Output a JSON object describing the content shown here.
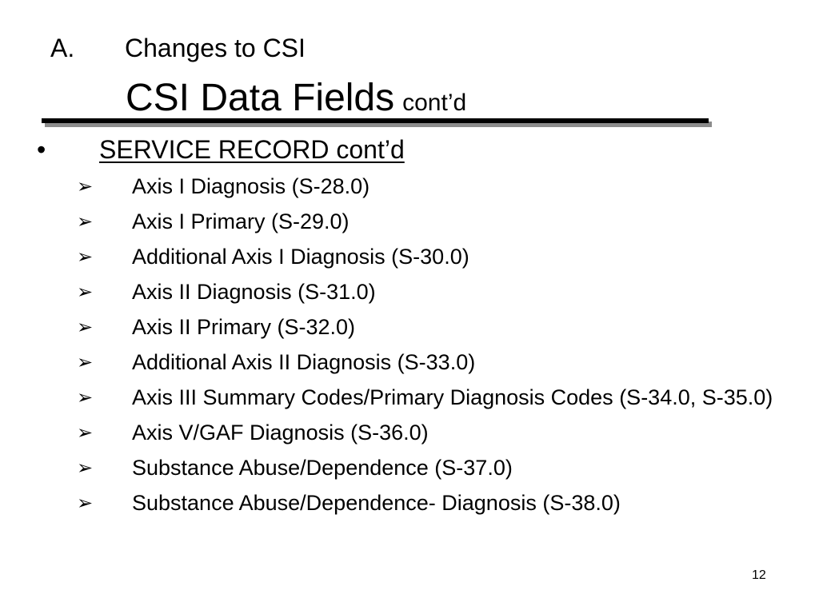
{
  "title": {
    "section_number": "A.",
    "section_title": "Changes to CSI",
    "main": "CSI Data Fields",
    "suffix": "cont’d"
  },
  "heading": {
    "bullet": "•",
    "text": "SERVICE RECORD cont’d"
  },
  "arrow_glyph": "➢",
  "items": [
    "Axis I Diagnosis (S-28.0)",
    "Axis I Primary (S-29.0)",
    "Additional Axis I Diagnosis (S-30.0)",
    "Axis II Diagnosis (S-31.0)",
    "Axis II Primary (S-32.0)",
    "Additional Axis II Diagnosis (S-33.0)",
    "Axis III Summary Codes/Primary Diagnosis Codes (S-34.0, S-35.0)",
    "Axis V/GAF Diagnosis (S-36.0)",
    "Substance Abuse/Dependence (S-37.0)",
    "Substance Abuse/Dependence- Diagnosis (S-38.0)"
  ],
  "page_number": "12"
}
